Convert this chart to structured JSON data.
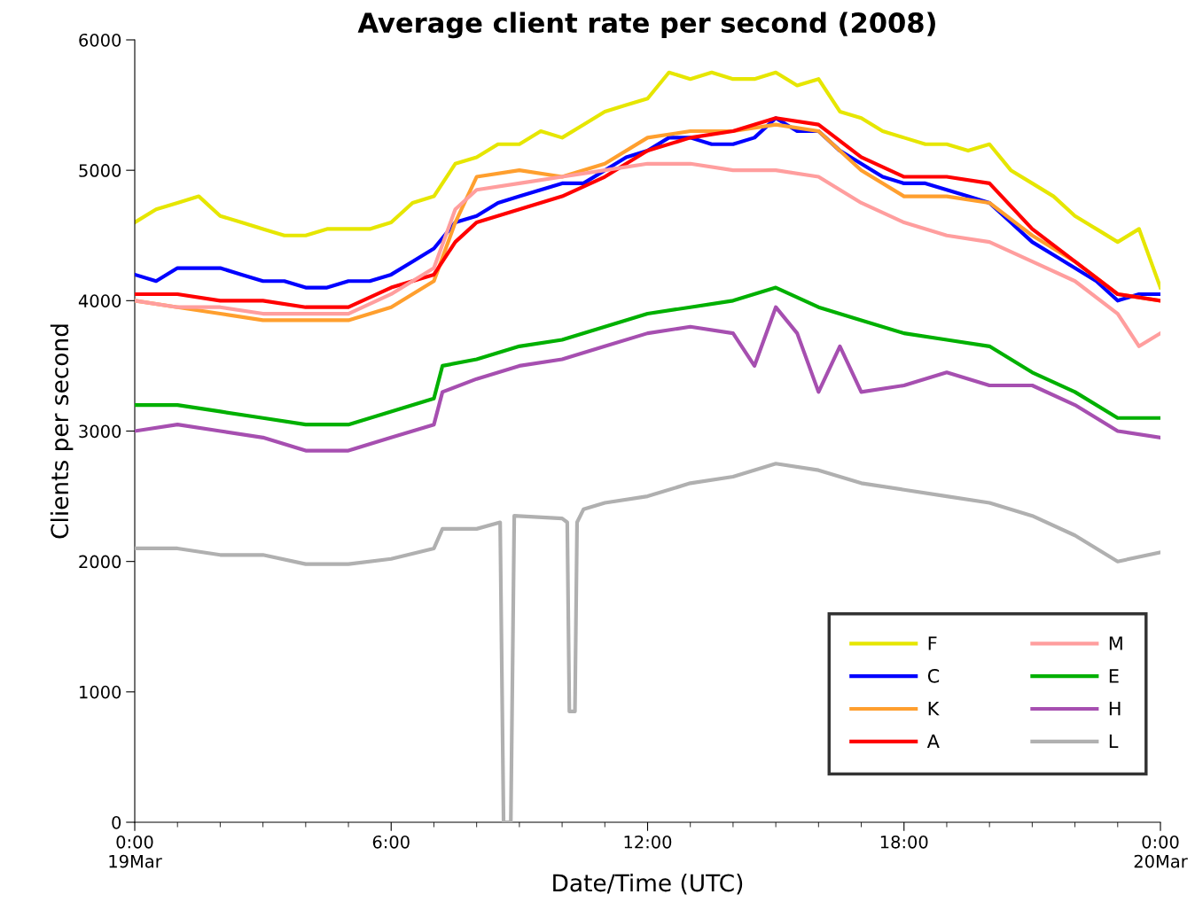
{
  "chart_data": {
    "type": "line",
    "title": "Average client rate per second (2008)",
    "xlabel": "Date/Time (UTC)",
    "ylabel": "Clients per second",
    "xlim": [
      0,
      24
    ],
    "xticks": [
      {
        "value": 0,
        "label": "0:00\n19Mar"
      },
      {
        "value": 6,
        "label": "6:00"
      },
      {
        "value": 12,
        "label": "12:00"
      },
      {
        "value": 18,
        "label": "18:00"
      },
      {
        "value": 24,
        "label": "0:00\n20Mar"
      }
    ],
    "ylim": [
      0,
      6000
    ],
    "yticks": [
      0,
      1000,
      2000,
      3000,
      4000,
      5000,
      6000
    ],
    "grid": false,
    "legend": "bottom right",
    "line_style": "solid",
    "marker": "none",
    "series": [
      {
        "name": "F",
        "color": "#e6e600",
        "x": [
          0,
          0.5,
          1,
          1.5,
          2,
          2.5,
          3,
          3.5,
          4,
          4.5,
          5,
          5.5,
          6,
          6.5,
          7,
          7.5,
          8,
          8.5,
          9,
          9.5,
          10,
          10.5,
          11,
          11.5,
          12,
          12.5,
          13,
          13.5,
          14,
          14.5,
          15,
          15.5,
          16,
          16.5,
          17,
          17.5,
          18,
          18.5,
          19,
          19.5,
          20,
          20.5,
          21,
          21.5,
          22,
          22.5,
          23,
          23.5,
          24
        ],
        "values": [
          4600,
          4700,
          4750,
          4800,
          4650,
          4600,
          4550,
          4500,
          4500,
          4550,
          4550,
          4550,
          4600,
          4750,
          4800,
          5050,
          5100,
          5200,
          5200,
          5300,
          5250,
          5350,
          5450,
          5500,
          5550,
          5750,
          5700,
          5750,
          5700,
          5700,
          5750,
          5650,
          5700,
          5450,
          5400,
          5300,
          5250,
          5200,
          5200,
          5150,
          5200,
          5000,
          4900,
          4800,
          4650,
          4550,
          4450,
          4550,
          4100
        ]
      },
      {
        "name": "C",
        "color": "#0000ff",
        "x": [
          0,
          0.5,
          1,
          1.5,
          2,
          2.5,
          3,
          3.5,
          4,
          4.5,
          5,
          5.5,
          6,
          6.5,
          7,
          7.5,
          8,
          8.5,
          9,
          9.5,
          10,
          10.5,
          11,
          11.5,
          12,
          12.5,
          13,
          13.5,
          14,
          14.5,
          15,
          15.5,
          16,
          16.5,
          17,
          17.5,
          18,
          18.5,
          19,
          19.5,
          20,
          20.5,
          21,
          21.5,
          22,
          22.5,
          23,
          23.5,
          24
        ],
        "values": [
          4200,
          4150,
          4250,
          4250,
          4250,
          4200,
          4150,
          4150,
          4100,
          4100,
          4150,
          4150,
          4200,
          4300,
          4400,
          4600,
          4650,
          4750,
          4800,
          4850,
          4900,
          4900,
          5000,
          5100,
          5150,
          5250,
          5250,
          5200,
          5200,
          5250,
          5400,
          5300,
          5300,
          5150,
          5050,
          4950,
          4900,
          4900,
          4850,
          4800,
          4750,
          4600,
          4450,
          4350,
          4250,
          4150,
          4000,
          4050,
          4050
        ]
      },
      {
        "name": "K",
        "color": "#ff9f2e",
        "x": [
          0,
          1,
          2,
          3,
          4,
          5,
          6,
          7,
          7.5,
          8,
          9,
          10,
          11,
          12,
          13,
          14,
          15,
          16,
          17,
          18,
          19,
          20,
          21,
          22,
          23,
          24
        ],
        "values": [
          4000,
          3950,
          3900,
          3850,
          3850,
          3850,
          3950,
          4150,
          4600,
          4950,
          5000,
          4950,
          5050,
          5250,
          5300,
          5300,
          5350,
          5300,
          5000,
          4800,
          4800,
          4750,
          4500,
          4300,
          4050,
          4000
        ]
      },
      {
        "name": "A",
        "color": "#ff0000",
        "x": [
          0,
          1,
          2,
          3,
          4,
          5,
          6,
          7,
          7.5,
          8,
          9,
          10,
          11,
          12,
          13,
          14,
          15,
          16,
          17,
          18,
          19,
          20,
          21,
          22,
          23,
          24
        ],
        "values": [
          4050,
          4050,
          4000,
          4000,
          3950,
          3950,
          4100,
          4200,
          4450,
          4600,
          4700,
          4800,
          4950,
          5150,
          5250,
          5300,
          5400,
          5350,
          5100,
          4950,
          4950,
          4900,
          4550,
          4300,
          4050,
          4000
        ]
      },
      {
        "name": "M",
        "color": "#ff9e9e",
        "x": [
          0,
          1,
          2,
          3,
          4,
          5,
          6,
          7,
          7.5,
          8,
          9,
          10,
          11,
          12,
          13,
          14,
          15,
          16,
          17,
          18,
          19,
          20,
          21,
          22,
          23,
          23.5,
          24
        ],
        "values": [
          4000,
          3950,
          3950,
          3900,
          3900,
          3900,
          4050,
          4250,
          4700,
          4850,
          4900,
          4950,
          5000,
          5050,
          5050,
          5000,
          5000,
          4950,
          4750,
          4600,
          4500,
          4450,
          4300,
          4150,
          3900,
          3650,
          3750
        ]
      },
      {
        "name": "E",
        "color": "#00b000",
        "x": [
          0,
          1,
          2,
          3,
          4,
          5,
          6,
          7,
          7.2,
          8,
          9,
          10,
          11,
          12,
          13,
          14,
          15,
          16,
          17,
          18,
          19,
          20,
          21,
          22,
          23,
          24
        ],
        "values": [
          3200,
          3200,
          3150,
          3100,
          3050,
          3050,
          3150,
          3250,
          3500,
          3550,
          3650,
          3700,
          3800,
          3900,
          3950,
          4000,
          4100,
          3950,
          3850,
          3750,
          3700,
          3650,
          3450,
          3300,
          3100,
          3100
        ]
      },
      {
        "name": "H",
        "color": "#a64fb0",
        "x": [
          0,
          1,
          2,
          3,
          4,
          5,
          6,
          7,
          7.2,
          8,
          9,
          10,
          11,
          12,
          13,
          14,
          14.5,
          15,
          15.5,
          16,
          16.5,
          17,
          18,
          19,
          20,
          21,
          22,
          23,
          24
        ],
        "values": [
          3000,
          3050,
          3000,
          2950,
          2850,
          2850,
          2950,
          3050,
          3300,
          3400,
          3500,
          3550,
          3650,
          3750,
          3800,
          3750,
          3500,
          3950,
          3750,
          3300,
          3650,
          3300,
          3350,
          3450,
          3350,
          3350,
          3200,
          3000,
          2950
        ]
      },
      {
        "name": "L",
        "color": "#b0b0b0",
        "x": [
          0,
          1,
          2,
          3,
          4,
          5,
          6,
          7,
          7.2,
          8,
          8.55,
          8.63,
          8.8,
          8.88,
          10,
          10.12,
          10.17,
          10.3,
          10.35,
          10.5,
          11,
          12,
          13,
          14,
          15,
          16,
          17,
          18,
          19,
          20,
          21,
          22,
          23,
          24
        ],
        "values": [
          2100,
          2100,
          2050,
          2050,
          1980,
          1980,
          2020,
          2100,
          2250,
          2250,
          2300,
          0,
          0,
          2350,
          2330,
          2300,
          850,
          850,
          2300,
          2400,
          2450,
          2500,
          2600,
          2650,
          2750,
          2700,
          2600,
          2550,
          2500,
          2450,
          2350,
          2200,
          2000,
          2070
        ]
      }
    ]
  }
}
